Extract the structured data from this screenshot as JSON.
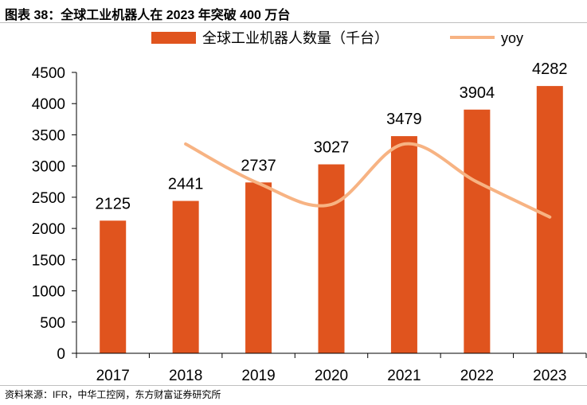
{
  "figure_title": "图表 38：全球工业机器人在 2023 年突破 400 万台",
  "source_note": "资料来源：IFR，中华工控网，东方财富证券研究所",
  "colors": {
    "bar": "#e0541e",
    "line": "#f7b383",
    "axis": "#000000"
  },
  "chart_data": {
    "type": "bar",
    "categories": [
      "2017",
      "2018",
      "2019",
      "2020",
      "2021",
      "2022",
      "2023"
    ],
    "series": [
      {
        "name": "全球工业机器人数量（千台）",
        "type": "bar",
        "axis": "left",
        "values": [
          2125,
          2441,
          2737,
          3027,
          3479,
          3904,
          4282
        ]
      },
      {
        "name": "yoy",
        "type": "line",
        "axis": "right",
        "smooth": true,
        "values": [
          null,
          0.149,
          0.121,
          0.106,
          0.149,
          0.122,
          0.097
        ]
      }
    ],
    "data_labels": [
      "2125",
      "2441",
      "2737",
      "3027",
      "3479",
      "3904",
      "4282"
    ],
    "yticks": [
      "0",
      "500",
      "1000",
      "1500",
      "2000",
      "2500",
      "3000",
      "3500",
      "4000",
      "4500"
    ],
    "ylim": [
      0,
      4500
    ],
    "y2lim": [
      0,
      0.2
    ],
    "grid": false,
    "legend_position": "top"
  }
}
